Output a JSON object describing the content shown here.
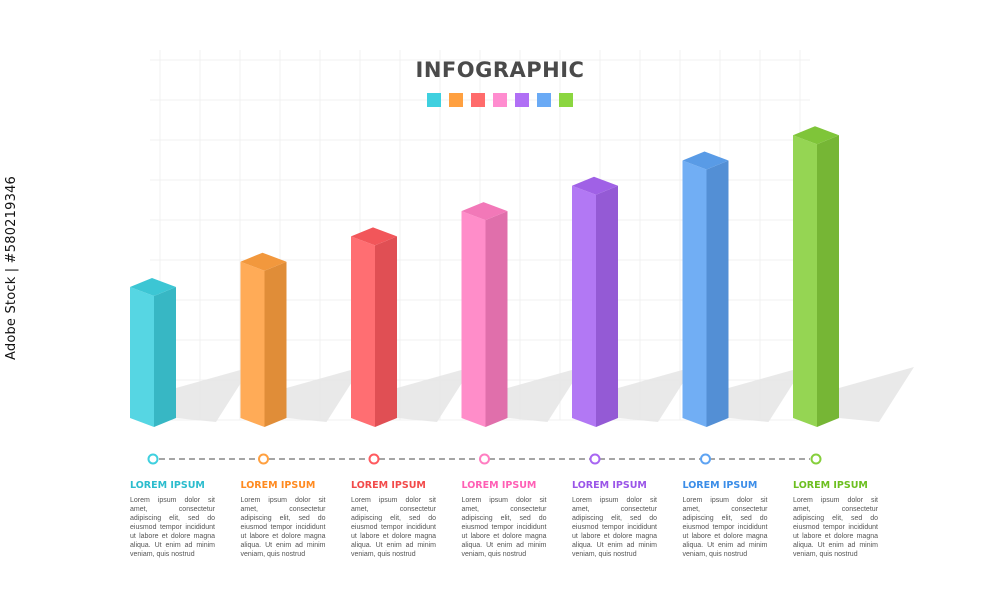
{
  "title": "INFOGRAPHIC",
  "swatch_colors": [
    "#3fd0df",
    "#ffa040",
    "#ff6b6b",
    "#ff8ccf",
    "#b06ff5",
    "#6aaaf5",
    "#8bd640"
  ],
  "side_text": "Adobe Stock | #580219346",
  "chart_data": {
    "type": "bar",
    "title": "INFOGRAPHIC",
    "categories": [
      "LOREM IPSUM",
      "LOREM IPSUM",
      "LOREM IPSUM",
      "LOREM IPSUM",
      "LOREM IPSUM",
      "LOREM IPSUM",
      "LOREM IPSUM"
    ],
    "values": [
      1,
      2,
      3,
      4,
      5,
      6,
      7
    ],
    "colors": [
      "#3fd0df",
      "#ffa040",
      "#ff5a5f",
      "#ff7ec2",
      "#a866f2",
      "#5ea3f2",
      "#86cf3c"
    ],
    "grid": true,
    "legend": "none"
  },
  "items": [
    {
      "label": "LOREM IPSUM",
      "color": "#2bbccd",
      "text": "Lorem ipsum dolor sit amet, consectetur adipiscing elit, sed do eiusmod tempor incididunt ut labore et dolore magna aliqua. Ut enim ad minim veniam, quis nostrud"
    },
    {
      "label": "LOREM IPSUM",
      "color": "#ff8a1f",
      "text": "Lorem ipsum dolor sit amet, consectetur adipiscing elit, sed do eiusmod tempor incididunt ut labore et dolore magna aliqua. Ut enim ad minim veniam, quis nostrud"
    },
    {
      "label": "LOREM IPSUM",
      "color": "#f24a4a",
      "text": "Lorem ipsum dolor sit amet, consectetur adipiscing elit, sed do eiusmod tempor incididunt ut labore et dolore magna aliqua. Ut enim ad minim veniam, quis nostrud"
    },
    {
      "label": "LOREM IPSUM",
      "color": "#ff5fb5",
      "text": "Lorem ipsum dolor sit amet, consectetur adipiscing elit, sed do eiusmod tempor incididunt ut labore et dolore magna aliqua. Ut enim ad minim veniam, quis nostrud"
    },
    {
      "label": "LOREM IPSUM",
      "color": "#9a55e8",
      "text": "Lorem ipsum dolor sit amet, consectetur adipiscing elit, sed do eiusmod tempor incididunt ut labore et dolore magna aliqua. Ut enim ad minim veniam, quis nostrud"
    },
    {
      "label": "LOREM IPSUM",
      "color": "#3b8de8",
      "text": "Lorem ipsum dolor sit amet, consectetur adipiscing elit, sed do eiusmod tempor incididunt ut labore et dolore magna aliqua. Ut enim ad minim veniam, quis nostrud"
    },
    {
      "label": "LOREM IPSUM",
      "color": "#6cbf1f",
      "text": "Lorem ipsum dolor sit amet, consectetur adipiscing elit, sed do eiusmod tempor incididunt ut labore et dolore magna aliqua. Ut enim ad minim veniam, quis nostrud"
    }
  ]
}
